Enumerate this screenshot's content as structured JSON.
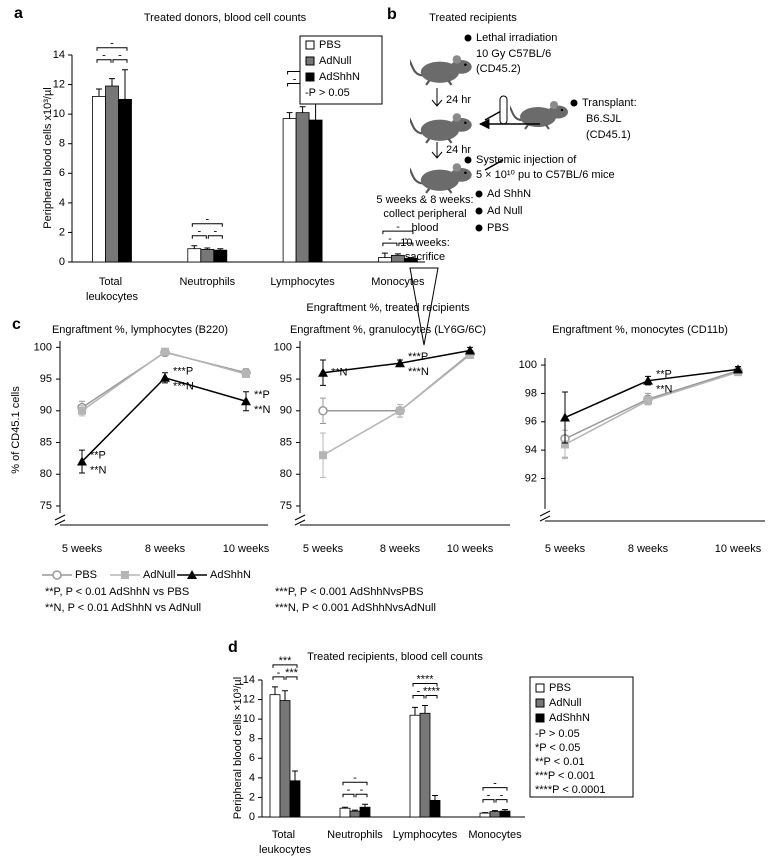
{
  "chart_data": [
    {
      "type": "bar",
      "panel_label": "a",
      "title": "Treated donors, blood cell counts",
      "y_label": "Peripheral blood cells x10³/µl",
      "categories": [
        "Total leukocytes",
        "Neutrophils",
        "Lymphocytes",
        "Monocytes"
      ],
      "series": [
        {
          "name": "PBS",
          "color": "#ffffff",
          "values": [
            11.2,
            0.9,
            9.7,
            0.3
          ],
          "errors": [
            0.5,
            0.2,
            0.4,
            0.3
          ]
        },
        {
          "name": "AdNull",
          "color": "#777777",
          "values": [
            11.9,
            0.85,
            10.1,
            0.45
          ],
          "errors": [
            0.5,
            0.1,
            0.4,
            0.1
          ]
        },
        {
          "name": "AdShhN",
          "color": "#000000",
          "values": [
            11.0,
            0.8,
            9.6,
            0.25
          ],
          "errors": [
            2.0,
            0.1,
            1.8,
            0.05
          ]
        }
      ],
      "ylim": [
        0,
        14
      ],
      "yticks": [
        0,
        2,
        4,
        6,
        8,
        10,
        12,
        14
      ],
      "significance": [
        [
          "-",
          "-",
          "-"
        ],
        [
          "-",
          "-",
          "-"
        ],
        [
          "-",
          "-",
          "-"
        ],
        [
          "-",
          "-",
          "-"
        ]
      ],
      "legend_notes": [
        "-P > 0.05"
      ]
    },
    {
      "type": "line",
      "panel_label": "c",
      "title": "Engraftment %, treated recipients",
      "y_label": "% of CD45.1 cells",
      "categories": [
        "5 weeks",
        "8 weeks",
        "10 weeks"
      ],
      "series": [
        {
          "name": "PBS",
          "color": "#999999",
          "marker": "circle"
        },
        {
          "name": "AdNull",
          "color": "#b5b5b5",
          "marker": "square"
        },
        {
          "name": "AdShhN",
          "color": "#000000",
          "marker": "triangle"
        }
      ],
      "subplots": [
        {
          "title": "Engraftment %, lymphocytes (B220)",
          "ylim": [
            72,
            101
          ],
          "yticks": [
            75,
            80,
            85,
            90,
            95,
            100
          ],
          "series": [
            {
              "values": [
                90.5,
                99.2,
                96.0
              ],
              "errors": [
                1.0,
                0.5,
                0.6
              ]
            },
            {
              "values": [
                90.0,
                99.3,
                95.8
              ],
              "errors": [
                0.8,
                0.4,
                0.5
              ]
            },
            {
              "values": [
                82.0,
                95.2,
                91.5
              ],
              "errors": [
                1.8,
                0.8,
                1.5
              ]
            }
          ],
          "annotations": [
            [
              "**P",
              "**N"
            ],
            [
              "***P",
              "***N"
            ],
            [
              "**P",
              "**N"
            ]
          ]
        },
        {
          "title": "Engraftment %,  granulocytes (LY6G/6C)",
          "ylim": [
            72,
            101
          ],
          "yticks": [
            75,
            80,
            85,
            90,
            95,
            100
          ],
          "series": [
            {
              "values": [
                90.0,
                90.0,
                99.0
              ],
              "errors": [
                2.0,
                1.0,
                0.5
              ]
            },
            {
              "values": [
                83.0,
                90.0,
                98.8
              ],
              "errors": [
                3.5,
                1.0,
                0.5
              ]
            },
            {
              "values": [
                96.0,
                97.5,
                99.5
              ],
              "errors": [
                2.0,
                0.5,
                0.5
              ]
            }
          ],
          "annotations": [
            [
              "**N"
            ],
            [
              "***P",
              "***N"
            ],
            null
          ]
        },
        {
          "title": "Engraftment %, monocytes (CD11b)",
          "ylim": [
            89,
            100.5
          ],
          "yticks": [
            92,
            94,
            96,
            98,
            100
          ],
          "series": [
            {
              "values": [
                94.8,
                97.6,
                99.6
              ],
              "errors": [
                1.3,
                0.4,
                0.2
              ]
            },
            {
              "values": [
                94.4,
                97.5,
                99.5
              ],
              "errors": [
                1.0,
                0.3,
                0.2
              ]
            },
            {
              "values": [
                96.3,
                98.9,
                99.7
              ],
              "errors": [
                1.8,
                0.3,
                0.2
              ]
            }
          ],
          "annotations": [
            null,
            [
              "**P",
              "**N"
            ],
            null
          ]
        }
      ],
      "notes": [
        "**P, P < 0.01 AdShhN vs PBS",
        "**N, P < 0.01 AdShhN vs AdNull",
        "***P, P < 0.001 AdShhNvsPBS",
        "***N, P < 0.001 AdShhNvsAdNull"
      ]
    },
    {
      "type": "bar",
      "panel_label": "d",
      "title": "Treated recipients, blood cell counts",
      "y_label": "Peripheral blood cells ×10³/µl",
      "categories": [
        "Total leukocytes",
        "Neutrophils",
        "Lymphocytes",
        "Monocytes"
      ],
      "series": [
        {
          "name": "PBS",
          "color": "#ffffff",
          "values": [
            12.5,
            0.9,
            10.4,
            0.4
          ],
          "errors": [
            0.8,
            0.1,
            0.8,
            0.05
          ]
        },
        {
          "name": "AdNull",
          "color": "#777777",
          "values": [
            11.9,
            0.6,
            10.6,
            0.55
          ],
          "errors": [
            1.0,
            0.1,
            0.8,
            0.1
          ]
        },
        {
          "name": "AdShhN",
          "color": "#000000",
          "values": [
            3.7,
            1.0,
            1.7,
            0.6
          ],
          "errors": [
            1.0,
            0.3,
            0.5,
            0.15
          ]
        }
      ],
      "ylim": [
        0,
        14
      ],
      "yticks": [
        0,
        2,
        4,
        6,
        8,
        10,
        12,
        14
      ],
      "significance": [
        [
          "***",
          "-",
          "***"
        ],
        [
          "-",
          "-",
          "-"
        ],
        [
          "****",
          "-",
          "****"
        ],
        [
          "-",
          "-",
          "-"
        ]
      ],
      "legend_notes": [
        "-P > 0.05",
        "*P < 0.05",
        "**P < 0.01",
        "***P < 0.001",
        "****P < 0.0001"
      ]
    }
  ],
  "diagram": {
    "panel_label": "b",
    "title": "Treated recipients",
    "irradiation": [
      "Lethal irradiation",
      "10 Gy C57BL/6",
      "(CD45.2)"
    ],
    "intervals": [
      "24 hr",
      "24 hr"
    ],
    "transplant": [
      "Transplant:",
      "B6.SJL",
      "(CD45.1)"
    ],
    "injection": [
      "Systemic injection of",
      "5 × 10¹⁰ pu to C57BL/6 mice"
    ],
    "treatments": [
      "Ad ShhN",
      "Ad Null",
      "PBS"
    ],
    "schedule": [
      "5 weeks & 8 weeks:",
      "collect peripheral",
      "blood",
      "10 weeks:",
      "sacrifice"
    ]
  }
}
